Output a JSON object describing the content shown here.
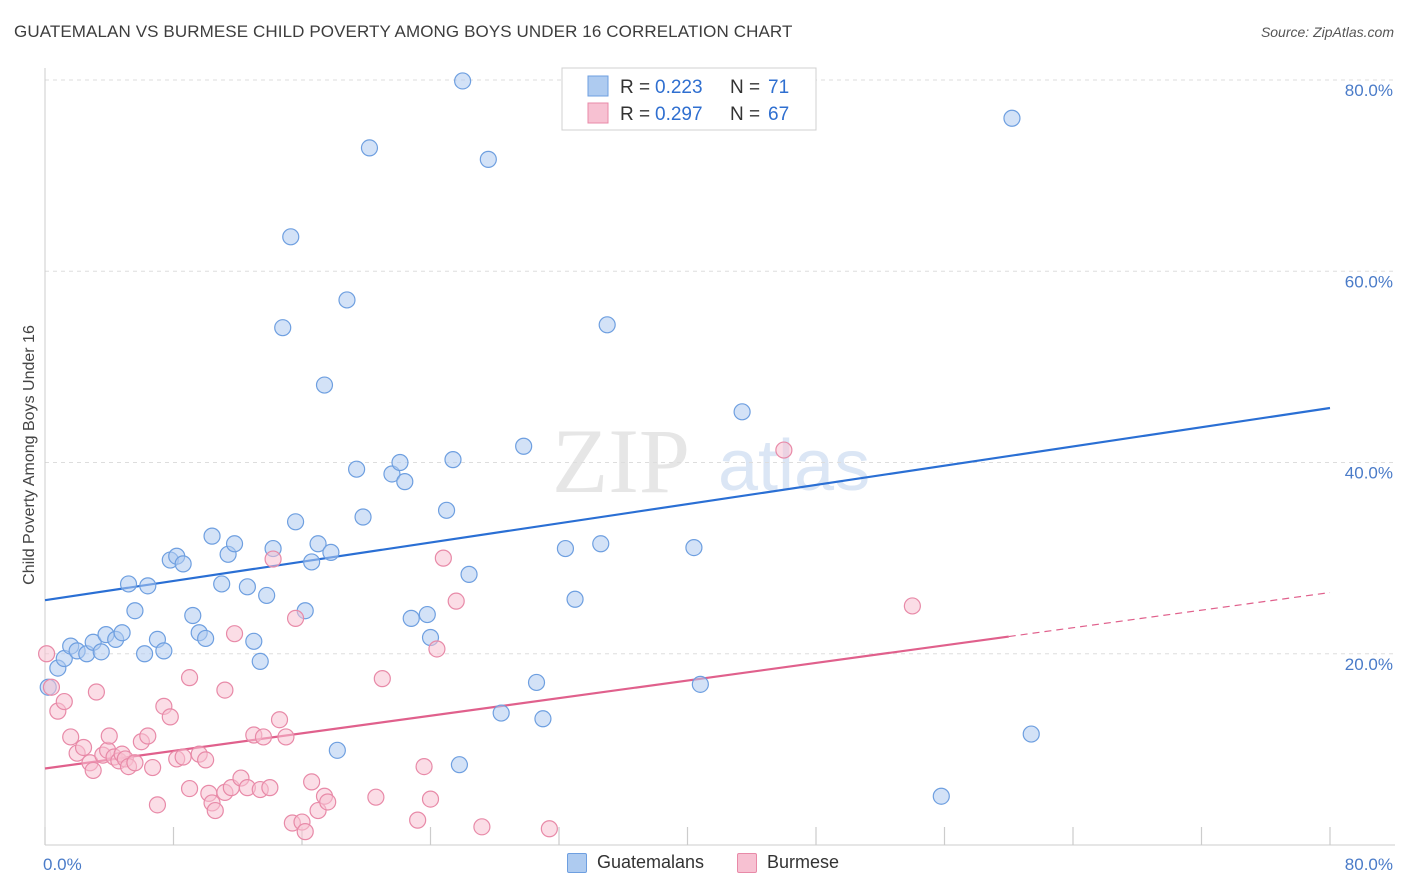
{
  "header": {
    "title": "GUATEMALAN VS BURMESE CHILD POVERTY AMONG BOYS UNDER 16 CORRELATION CHART",
    "source": "Source: ZipAtlas.com"
  },
  "watermark": {
    "zip": "ZIP",
    "atlas": "atlas"
  },
  "legend": {
    "rows": [
      {
        "r_label": "R = ",
        "r_value": "0.223",
        "n_label": "N = ",
        "n_value": "71"
      },
      {
        "r_label": "R = ",
        "r_value": "0.297",
        "n_label": "N = ",
        "n_value": "67"
      }
    ]
  },
  "bottom_legend": {
    "items": [
      "Guatemalans",
      "Burmese"
    ]
  },
  "colors": {
    "blue_fill": "#aecbf0",
    "blue_stroke": "#6e9fe0",
    "blue_line": "#2a6fd4",
    "pink_fill": "#f7c1d2",
    "pink_stroke": "#e88aa8",
    "pink_line": "#e0608c",
    "grid": "#dddddd",
    "tick_text": "#4a7bc8"
  },
  "chart_data": {
    "type": "scatter",
    "ylabel": "Child Poverty Among Boys Under 16",
    "xlabel": "",
    "xlim": [
      0,
      80
    ],
    "ylim": [
      0,
      80
    ],
    "x_tick_labels": [
      "0.0%",
      "80.0%"
    ],
    "y_ticks": [
      20,
      40,
      60,
      80
    ],
    "y_tick_labels": [
      "20.0%",
      "40.0%",
      "60.0%",
      "80.0%"
    ],
    "grid": true,
    "series": [
      {
        "name": "Guatemalans",
        "trend": {
          "x": [
            0,
            80
          ],
          "y": [
            25.6,
            45.7
          ],
          "dashed_from": null
        },
        "points": [
          [
            0.2,
            16.5
          ],
          [
            0.8,
            18.5
          ],
          [
            1.2,
            19.5
          ],
          [
            1.6,
            20.8
          ],
          [
            2.0,
            20.3
          ],
          [
            2.6,
            20.0
          ],
          [
            3.0,
            21.2
          ],
          [
            3.5,
            20.2
          ],
          [
            3.8,
            22.0
          ],
          [
            4.4,
            21.5
          ],
          [
            4.8,
            22.2
          ],
          [
            5.2,
            27.3
          ],
          [
            5.6,
            24.5
          ],
          [
            6.2,
            20.0
          ],
          [
            6.4,
            27.1
          ],
          [
            7.0,
            21.5
          ],
          [
            7.4,
            20.3
          ],
          [
            7.8,
            29.8
          ],
          [
            8.2,
            30.2
          ],
          [
            8.6,
            29.4
          ],
          [
            9.2,
            24.0
          ],
          [
            9.6,
            22.2
          ],
          [
            10.0,
            21.6
          ],
          [
            10.4,
            32.3
          ],
          [
            11.0,
            27.3
          ],
          [
            11.4,
            30.4
          ],
          [
            11.8,
            31.5
          ],
          [
            12.6,
            27.0
          ],
          [
            13.0,
            21.3
          ],
          [
            13.4,
            19.2
          ],
          [
            13.8,
            26.1
          ],
          [
            14.2,
            31.0
          ],
          [
            14.8,
            54.1
          ],
          [
            15.3,
            63.6
          ],
          [
            15.6,
            33.8
          ],
          [
            16.2,
            24.5
          ],
          [
            16.6,
            29.6
          ],
          [
            17.0,
            31.5
          ],
          [
            17.4,
            48.1
          ],
          [
            17.8,
            30.6
          ],
          [
            18.2,
            9.9
          ],
          [
            18.8,
            57.0
          ],
          [
            19.4,
            39.3
          ],
          [
            19.8,
            34.3
          ],
          [
            20.2,
            72.9
          ],
          [
            21.6,
            38.8
          ],
          [
            22.1,
            40.0
          ],
          [
            22.4,
            38.0
          ],
          [
            22.8,
            23.7
          ],
          [
            23.8,
            24.1
          ],
          [
            24.0,
            21.7
          ],
          [
            25.0,
            35.0
          ],
          [
            25.4,
            40.3
          ],
          [
            25.8,
            8.4
          ],
          [
            26.0,
            79.9
          ],
          [
            26.4,
            28.3
          ],
          [
            27.6,
            71.7
          ],
          [
            28.4,
            13.8
          ],
          [
            29.8,
            41.7
          ],
          [
            30.6,
            17.0
          ],
          [
            31.0,
            13.2
          ],
          [
            32.4,
            31.0
          ],
          [
            33.0,
            25.7
          ],
          [
            34.6,
            31.5
          ],
          [
            35.0,
            54.4
          ],
          [
            40.4,
            31.1
          ],
          [
            40.8,
            16.8
          ],
          [
            43.4,
            45.3
          ],
          [
            55.8,
            5.1
          ],
          [
            60.2,
            76.0
          ],
          [
            61.4,
            11.6
          ]
        ]
      },
      {
        "name": "Burmese",
        "trend": {
          "x": [
            0,
            80
          ],
          "y": [
            8.0,
            26.4
          ],
          "dashed_from": 60
        },
        "points": [
          [
            0.1,
            20.0
          ],
          [
            0.4,
            16.5
          ],
          [
            0.8,
            14.0
          ],
          [
            1.2,
            15.0
          ],
          [
            1.6,
            11.3
          ],
          [
            2.0,
            9.6
          ],
          [
            2.4,
            10.2
          ],
          [
            2.8,
            8.6
          ],
          [
            3.0,
            7.8
          ],
          [
            3.2,
            16.0
          ],
          [
            3.6,
            9.4
          ],
          [
            3.9,
            9.9
          ],
          [
            4.0,
            11.4
          ],
          [
            4.3,
            9.2
          ],
          [
            4.6,
            8.8
          ],
          [
            4.8,
            9.5
          ],
          [
            5.0,
            9.0
          ],
          [
            5.2,
            8.2
          ],
          [
            5.6,
            8.6
          ],
          [
            6.0,
            10.8
          ],
          [
            6.4,
            11.4
          ],
          [
            6.7,
            8.1
          ],
          [
            7.0,
            4.2
          ],
          [
            7.4,
            14.5
          ],
          [
            7.8,
            13.4
          ],
          [
            8.2,
            9.0
          ],
          [
            8.6,
            9.2
          ],
          [
            9.0,
            17.5
          ],
          [
            9.0,
            5.9
          ],
          [
            9.6,
            9.5
          ],
          [
            10.0,
            8.9
          ],
          [
            10.2,
            5.4
          ],
          [
            10.4,
            4.4
          ],
          [
            10.6,
            3.6
          ],
          [
            11.2,
            5.5
          ],
          [
            11.2,
            16.2
          ],
          [
            11.6,
            6.0
          ],
          [
            11.8,
            22.1
          ],
          [
            12.2,
            7.0
          ],
          [
            12.6,
            6.0
          ],
          [
            13.0,
            11.5
          ],
          [
            13.4,
            5.8
          ],
          [
            13.6,
            11.3
          ],
          [
            14.0,
            6.0
          ],
          [
            14.2,
            29.9
          ],
          [
            14.6,
            13.1
          ],
          [
            15.0,
            11.3
          ],
          [
            15.4,
            2.3
          ],
          [
            15.6,
            23.7
          ],
          [
            16.0,
            2.4
          ],
          [
            16.2,
            1.4
          ],
          [
            16.6,
            6.6
          ],
          [
            17.0,
            3.6
          ],
          [
            17.4,
            5.1
          ],
          [
            17.6,
            4.5
          ],
          [
            20.6,
            5.0
          ],
          [
            21.0,
            17.4
          ],
          [
            23.2,
            2.6
          ],
          [
            23.6,
            8.2
          ],
          [
            24.0,
            4.8
          ],
          [
            24.4,
            20.5
          ],
          [
            24.8,
            30.0
          ],
          [
            25.6,
            25.5
          ],
          [
            27.2,
            1.9
          ],
          [
            31.4,
            1.7
          ],
          [
            46.0,
            41.3
          ],
          [
            54.0,
            25.0
          ]
        ]
      }
    ]
  }
}
